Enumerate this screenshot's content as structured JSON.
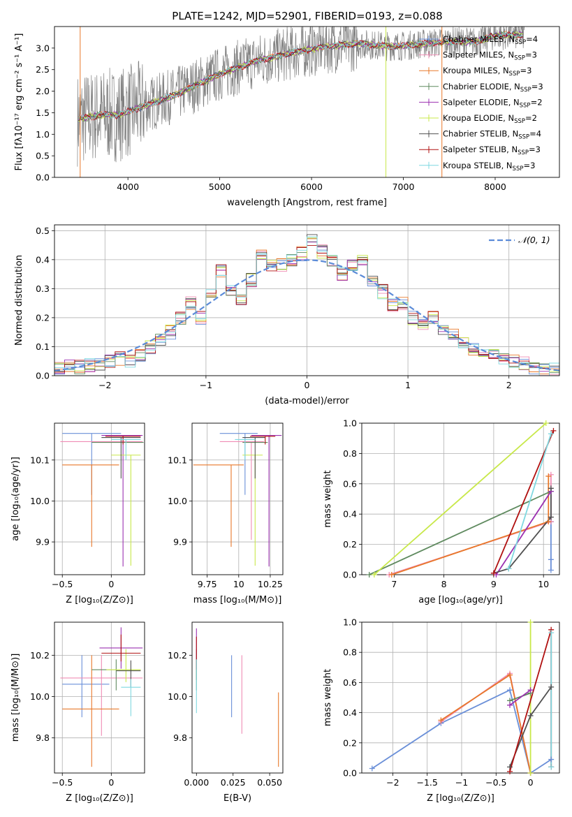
{
  "figure_title": "PLATE=1242, MJD=52901, FIBERID=0193, z=0.088",
  "colors": {
    "data_grey": "#808080",
    "Chabrier MILES": "#6a8fd8",
    "Salpeter MILES": "#f08cb4",
    "Kroupa MILES": "#e8782a",
    "Chabrier ELODIE": "#5f8a5f",
    "Salpeter ELODIE": "#9b30b0",
    "Kroupa ELODIE": "#c8e84a",
    "Chabrier STELIB": "#505050",
    "Salpeter STELIB": "#b01010",
    "Kroupa STELIB": "#7fd8e0"
  },
  "legend_entries": [
    {
      "key": "Chabrier MILES",
      "label": "Chabrier MILES, N",
      "sub": "SSP",
      "tail": "=4"
    },
    {
      "key": "Salpeter MILES",
      "label": "Salpeter MILES, N",
      "sub": "SSP",
      "tail": "=3"
    },
    {
      "key": "Kroupa MILES",
      "label": "Kroupa MILES, N",
      "sub": "SSP",
      "tail": "=3"
    },
    {
      "key": "Chabrier ELODIE",
      "label": "Chabrier ELODIE, N",
      "sub": "SSP",
      "tail": "=3"
    },
    {
      "key": "Salpeter ELODIE",
      "label": "Salpeter ELODIE, N",
      "sub": "SSP",
      "tail": "=2"
    },
    {
      "key": "Kroupa ELODIE",
      "label": "Kroupa ELODIE, N",
      "sub": "SSP",
      "tail": "=2"
    },
    {
      "key": "Chabrier STELIB",
      "label": "Chabrier STELIB, N",
      "sub": "SSP",
      "tail": "=4"
    },
    {
      "key": "Salpeter STELIB",
      "label": "Salpeter STELIB, N",
      "sub": "SSP",
      "tail": "=3"
    },
    {
      "key": "Kroupa STELIB",
      "label": "Kroupa STELIB, N",
      "sub": "SSP",
      "tail": "=3"
    }
  ],
  "chart_data": [
    {
      "id": "spectrum",
      "type": "line",
      "xlabel": "wavelength [Angstrom, rest frame]",
      "ylabel": "Flux [fλ10⁻¹⁷ erg cm⁻² s⁻¹ A⁻¹]",
      "xlim": [
        3200,
        8700
      ],
      "ylim": [
        0,
        3.5
      ],
      "xticks": [
        4000,
        5000,
        6000,
        7000,
        8000
      ],
      "yticks": [
        0.0,
        0.5,
        1.0,
        1.5,
        2.0,
        2.5,
        3.0
      ],
      "grid": false,
      "legend": "top-right",
      "continuum": {
        "x": [
          3450,
          3700,
          3900,
          4100,
          4300,
          4500,
          4800,
          5000,
          5200,
          5400,
          5600,
          5800,
          6000,
          6200,
          6500,
          6800,
          7000,
          7200,
          7500,
          7800,
          8000,
          8300
        ],
        "y": [
          1.35,
          1.45,
          1.45,
          1.6,
          1.75,
          1.9,
          2.2,
          2.4,
          2.55,
          2.7,
          2.8,
          2.9,
          2.98,
          3.05,
          3.1,
          3.05,
          3.05,
          3.1,
          3.15,
          3.15,
          3.3,
          3.3
        ]
      }
    },
    {
      "id": "residuals",
      "type": "histogram",
      "xlabel": "(data-model)/error",
      "ylabel": "Normed distribution",
      "xlim": [
        -2.5,
        2.5
      ],
      "ylim": [
        0,
        0.52
      ],
      "xticks": [
        -2,
        -1,
        0,
        1,
        2
      ],
      "yticks": [
        0.0,
        0.1,
        0.2,
        0.3,
        0.4,
        0.5
      ],
      "grid": true,
      "legend": "top-right",
      "reference_label": "𝒩(0, 1)",
      "bin_width": 0.1,
      "bin_start": -2.5,
      "base_values": [
        0.03,
        0.03,
        0.03,
        0.035,
        0.04,
        0.05,
        0.06,
        0.05,
        0.07,
        0.1,
        0.12,
        0.15,
        0.2,
        0.25,
        0.2,
        0.28,
        0.36,
        0.3,
        0.26,
        0.33,
        0.42,
        0.38,
        0.38,
        0.4,
        0.42,
        0.47,
        0.43,
        0.4,
        0.35,
        0.38,
        0.4,
        0.32,
        0.29,
        0.24,
        0.25,
        0.2,
        0.18,
        0.2,
        0.15,
        0.14,
        0.12,
        0.09,
        0.08,
        0.07,
        0.06,
        0.05,
        0.04,
        0.03,
        0.02,
        0.02
      ]
    },
    {
      "id": "age_vs_Z",
      "type": "scatter",
      "xlabel": "Z [log₁₀(Z/Z⊙)]",
      "ylabel": "age  [log₁₀(age/yr)]",
      "xlim": [
        -0.58,
        0.34
      ],
      "ylim": [
        9.82,
        10.19
      ],
      "xticks": [
        -0.5,
        0.0
      ],
      "yticks": [
        9.9,
        10.0,
        10.1
      ],
      "grid": true,
      "points": [
        {
          "key": "Chabrier MILES",
          "x": -0.2,
          "xerr": [
            0.3,
            0.3
          ],
          "y": 10.165,
          "yerr": [
            0.15,
            0.0
          ]
        },
        {
          "key": "Salpeter MILES",
          "x": -0.1,
          "xerr": [
            0.42,
            0.42
          ],
          "y": 10.145,
          "yerr": [
            0.0,
            0.0
          ]
        },
        {
          "key": "Kroupa MILES",
          "x": -0.2,
          "xerr": [
            0.3,
            0.28
          ],
          "y": 10.088,
          "yerr": [
            0.2,
            0.0
          ]
        },
        {
          "key": "Chabrier ELODIE",
          "x": 0.05,
          "xerr": [
            0.25,
            0.28
          ],
          "y": 10.143,
          "yerr": [
            0.0,
            0.0
          ]
        },
        {
          "key": "Salpeter ELODIE",
          "x": 0.12,
          "xerr": [
            0.22,
            0.2
          ],
          "y": 10.16,
          "yerr": [
            0.32,
            0.0
          ]
        },
        {
          "key": "Kroupa ELODIE",
          "x": 0.2,
          "xerr": [
            0.2,
            0.1
          ],
          "y": 10.112,
          "yerr": [
            0.27,
            0.0
          ]
        },
        {
          "key": "Chabrier STELIB",
          "x": 0.1,
          "xerr": [
            0.2,
            0.2
          ],
          "y": 10.155,
          "yerr": [
            0.1,
            0.0
          ]
        },
        {
          "key": "Salpeter STELIB",
          "x": 0.12,
          "xerr": [
            0.18,
            0.18
          ],
          "y": 10.158,
          "yerr": [
            0.02,
            0.0
          ]
        },
        {
          "key": "Kroupa STELIB",
          "x": 0.15,
          "xerr": [
            0.15,
            0.15
          ],
          "y": 10.15,
          "yerr": [
            0.05,
            0.0
          ]
        }
      ]
    },
    {
      "id": "age_vs_mass",
      "type": "scatter",
      "xlabel": "mass [log₁₀(M/M⊙)]",
      "ylabel": "",
      "xlim": [
        9.63,
        10.35
      ],
      "ylim": [
        9.82,
        10.19
      ],
      "xticks": [
        9.75,
        10.0,
        10.25
      ],
      "yticks": [
        9.9,
        10.0,
        10.1
      ],
      "grid": true,
      "points": [
        {
          "key": "Chabrier MILES",
          "x": 10.05,
          "xerr": [
            0.2,
            0.1
          ],
          "y": 10.165,
          "yerr": [
            0.15,
            0.0
          ]
        },
        {
          "key": "Salpeter MILES",
          "x": 10.1,
          "xerr": [
            0.25,
            0.1
          ],
          "y": 10.145,
          "yerr": [
            0.24,
            0.0
          ]
        },
        {
          "key": "Kroupa MILES",
          "x": 9.94,
          "xerr": [
            0.3,
            0.1
          ],
          "y": 10.088,
          "yerr": [
            0.2,
            0.0
          ]
        },
        {
          "key": "Chabrier ELODIE",
          "x": 10.13,
          "xerr": [
            0.1,
            0.1
          ],
          "y": 10.143,
          "yerr": [
            0.0,
            0.0
          ]
        },
        {
          "key": "Salpeter ELODIE",
          "x": 10.24,
          "xerr": [
            0.14,
            0.1
          ],
          "y": 10.16,
          "yerr": [
            0.32,
            0.0
          ]
        },
        {
          "key": "Kroupa ELODIE",
          "x": 10.13,
          "xerr": [
            0.1,
            0.06
          ],
          "y": 10.112,
          "yerr": [
            0.27,
            0.0
          ]
        },
        {
          "key": "Chabrier STELIB",
          "x": 10.13,
          "xerr": [
            0.1,
            0.08
          ],
          "y": 10.155,
          "yerr": [
            0.1,
            0.0
          ]
        },
        {
          "key": "Salpeter STELIB",
          "x": 10.21,
          "xerr": [
            0.12,
            0.08
          ],
          "y": 10.158,
          "yerr": [
            0.02,
            0.0
          ]
        },
        {
          "key": "Kroupa STELIB",
          "x": 10.05,
          "xerr": [
            0.08,
            0.08
          ],
          "y": 10.15,
          "yerr": [
            0.05,
            0.0
          ]
        }
      ]
    },
    {
      "id": "weight_vs_age",
      "type": "line",
      "xlabel": "age  [log₁₀(age/yr)]",
      "ylabel": "mass weight",
      "xlim": [
        6.35,
        10.32
      ],
      "ylim": [
        0,
        1
      ],
      "xticks": [
        7,
        8,
        9,
        10
      ],
      "yticks": [
        0.0,
        0.2,
        0.4,
        0.6,
        0.8,
        1.0
      ],
      "grid": true,
      "series": [
        {
          "key": "Chabrier MILES",
          "x": [
            10.15,
            10.15,
            10.15,
            10.15
          ],
          "y": [
            0.03,
            0.1,
            0.35,
            0.55
          ]
        },
        {
          "key": "Salpeter MILES",
          "x": [
            6.9,
            10.15,
            10.15
          ],
          "y": [
            0.0,
            0.35,
            0.66
          ]
        },
        {
          "key": "Kroupa MILES",
          "x": [
            6.95,
            10.1,
            10.1
          ],
          "y": [
            0.0,
            0.35,
            0.65
          ]
        },
        {
          "key": "Chabrier ELODIE",
          "x": [
            6.5,
            10.15
          ],
          "y": [
            0.0,
            0.55
          ]
        },
        {
          "key": "Salpeter ELODIE",
          "x": [
            9.05,
            10.15
          ],
          "y": [
            0.0,
            0.55
          ]
        },
        {
          "key": "Kroupa ELODIE",
          "x": [
            6.6,
            10.05
          ],
          "y": [
            0.0,
            1.0
          ]
        },
        {
          "key": "Chabrier STELIB",
          "x": [
            9.0,
            9.3,
            10.15,
            10.15
          ],
          "y": [
            0.01,
            0.04,
            0.38,
            0.57
          ]
        },
        {
          "key": "Salpeter STELIB",
          "x": [
            9.0,
            10.2
          ],
          "y": [
            0.01,
            0.95
          ]
        },
        {
          "key": "Kroupa STELIB",
          "x": [
            9.3,
            10.15
          ],
          "y": [
            0.04,
            0.93
          ]
        }
      ]
    },
    {
      "id": "mass_vs_Z",
      "type": "scatter",
      "xlabel": "Z [log₁₀(Z/Z⊙)]",
      "ylabel": "mass [log₁₀(M/M⊙)]",
      "xlim": [
        -0.58,
        0.34
      ],
      "ylim": [
        9.63,
        10.36
      ],
      "xticks": [
        -0.5,
        0.0
      ],
      "yticks": [
        9.8,
        10.0,
        10.2
      ],
      "grid": true,
      "points": [
        {
          "key": "Chabrier MILES",
          "x": -0.3,
          "xerr": [
            0.2,
            0.28
          ],
          "y": 10.06,
          "yerr": [
            0.16,
            0.14
          ]
        },
        {
          "key": "Salpeter MILES",
          "x": -0.1,
          "xerr": [
            0.42,
            0.42
          ],
          "y": 10.09,
          "yerr": [
            0.28,
            0.11
          ]
        },
        {
          "key": "Kroupa MILES",
          "x": -0.2,
          "xerr": [
            0.3,
            0.28
          ],
          "y": 9.94,
          "yerr": [
            0.28,
            0.26
          ]
        },
        {
          "key": "Chabrier ELODIE",
          "x": 0.05,
          "xerr": [
            0.25,
            0.25
          ],
          "y": 10.13,
          "yerr": [
            0.1,
            0.05
          ]
        },
        {
          "key": "Salpeter ELODIE",
          "x": 0.1,
          "xerr": [
            0.22,
            0.22
          ],
          "y": 10.235,
          "yerr": [
            0.1,
            0.1
          ]
        },
        {
          "key": "Kroupa ELODIE",
          "x": 0.15,
          "xerr": [
            0.2,
            0.15
          ],
          "y": 10.13,
          "yerr": [
            0.06,
            0.1
          ]
        },
        {
          "key": "Chabrier STELIB",
          "x": 0.2,
          "xerr": [
            0.15,
            0.1
          ],
          "y": 10.125,
          "yerr": [
            0.08,
            0.05
          ]
        },
        {
          "key": "Salpeter STELIB",
          "x": 0.1,
          "xerr": [
            0.2,
            0.2
          ],
          "y": 10.21,
          "yerr": [
            0.04,
            0.09
          ]
        },
        {
          "key": "Kroupa STELIB",
          "x": 0.2,
          "xerr": [
            0.1,
            0.1
          ],
          "y": 10.045,
          "yerr": [
            0.14,
            0.04
          ]
        }
      ]
    },
    {
      "id": "mass_vs_ebv",
      "type": "scatter",
      "xlabel": "E(B-V)",
      "ylabel": "",
      "xlim": [
        -0.003,
        0.059
      ],
      "ylim": [
        9.63,
        10.36
      ],
      "xticks": [
        0.0,
        0.025,
        0.05
      ],
      "xticklabels": [
        "0.000",
        "0.025",
        "0.050"
      ],
      "yticks": [
        9.8,
        10.0,
        10.2
      ],
      "grid": false,
      "points": [
        {
          "key": "Chabrier MILES",
          "x": 0.024,
          "y": 10.05,
          "yerr": [
            0.15,
            0.15
          ]
        },
        {
          "key": "Salpeter MILES",
          "x": 0.031,
          "y": 10.01,
          "yerr": [
            0.19,
            0.19
          ]
        },
        {
          "key": "Kroupa MILES",
          "x": 0.056,
          "y": 9.84,
          "yerr": [
            0.18,
            0.18
          ]
        },
        {
          "key": "Chabrier ELODIE",
          "x": 0.0,
          "y": 10.13,
          "yerr": [
            0.1,
            0.1
          ]
        },
        {
          "key": "Salpeter ELODIE",
          "x": 0.0,
          "y": 10.24,
          "yerr": [
            0.09,
            0.09
          ]
        },
        {
          "key": "Kroupa ELODIE",
          "x": 0.0,
          "y": 10.13,
          "yerr": [
            0.05,
            0.05
          ]
        },
        {
          "key": "Chabrier STELIB",
          "x": 0.0,
          "y": 10.13,
          "yerr": [
            0.05,
            0.05
          ]
        },
        {
          "key": "Salpeter STELIB",
          "x": 0.0,
          "y": 10.21,
          "yerr": [
            0.08,
            0.08
          ]
        },
        {
          "key": "Kroupa STELIB",
          "x": 0.0,
          "y": 10.05,
          "yerr": [
            0.13,
            0.13
          ]
        }
      ]
    },
    {
      "id": "weight_vs_Z",
      "type": "line",
      "xlabel": "Z [log₁₀(Z/Z⊙)]",
      "ylabel": "mass weight",
      "xlim": [
        -2.45,
        0.42
      ],
      "ylim": [
        0,
        1
      ],
      "xticks": [
        -2.0,
        -1.5,
        -1.0,
        -0.5,
        0.0
      ],
      "yticks": [
        0.0,
        0.2,
        0.4,
        0.6,
        0.8,
        1.0
      ],
      "grid": true,
      "series": [
        {
          "key": "Chabrier MILES",
          "x": [
            -2.3,
            -1.3,
            -0.3,
            0.0,
            0.3
          ],
          "y": [
            0.03,
            0.33,
            0.55,
            0.0,
            0.09
          ]
        },
        {
          "key": "Salpeter MILES",
          "x": [
            -1.3,
            -0.3,
            0.0
          ],
          "y": [
            0.34,
            0.66,
            0.0
          ]
        },
        {
          "key": "Kroupa MILES",
          "x": [
            -1.3,
            -0.3,
            0.0
          ],
          "y": [
            0.35,
            0.65,
            0.0
          ]
        },
        {
          "key": "Chabrier ELODIE",
          "x": [
            -0.3,
            0.0
          ],
          "y": [
            0.48,
            0.53
          ]
        },
        {
          "key": "Salpeter ELODIE",
          "x": [
            -0.3,
            0.0
          ],
          "y": [
            0.45,
            0.55
          ]
        },
        {
          "key": "Kroupa ELODIE",
          "x": [
            0.0,
            0.0
          ],
          "y": [
            0.0,
            1.0
          ]
        },
        {
          "key": "Chabrier STELIB",
          "x": [
            -0.3,
            0.0,
            0.3
          ],
          "y": [
            0.04,
            0.38,
            0.57
          ]
        },
        {
          "key": "Salpeter STELIB",
          "x": [
            -0.3,
            0.3,
            0.3
          ],
          "y": [
            0.01,
            0.95,
            0.04
          ]
        },
        {
          "key": "Kroupa STELIB",
          "x": [
            0.3,
            0.3
          ],
          "y": [
            0.04,
            0.93
          ]
        }
      ]
    }
  ]
}
